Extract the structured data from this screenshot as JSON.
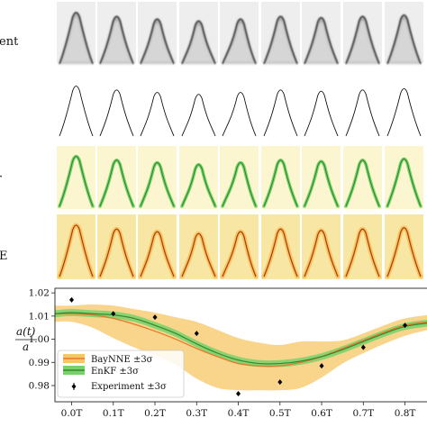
{
  "row_labels": {
    "experiment": "ent",
    "panel3": "·",
    "panel4": "E"
  },
  "colors": {
    "baynne": "#e8782a",
    "baynne_band": "#f7c766",
    "enkf": "#2e8a2e",
    "enkf_band": "#7ad16b",
    "panel_bg_enkf": "#fbf6cf",
    "panel_bg_baynne": "#f8e7a4",
    "experiment": "#000000"
  },
  "chart_data": {
    "type": "line",
    "xlabel": "",
    "ylabel_numerator": "a(t)",
    "ylabel_denominator": "a",
    "ylim": [
      0.973,
      1.022
    ],
    "yticks": [
      "0.98",
      "0.99",
      "1.00",
      "1.01",
      "1.02"
    ],
    "ytick_values": [
      0.98,
      0.99,
      1.0,
      1.01,
      1.02
    ],
    "xticks": [
      "0.0T",
      "0.1T",
      "0.2T",
      "0.3T",
      "0.4T",
      "0.5T",
      "0.6T",
      "0.7T",
      "0.8T"
    ],
    "xtick_values": [
      0,
      0.1,
      0.2,
      0.3,
      0.4,
      0.5,
      0.6,
      0.7,
      0.8
    ],
    "xlim": [
      -0.04,
      0.855
    ],
    "legend_position": "lower-left",
    "series": [
      {
        "name": "BayNNE ±3σ",
        "x": [
          -0.04,
          0.0,
          0.05,
          0.1,
          0.15,
          0.2,
          0.25,
          0.3,
          0.35,
          0.4,
          0.45,
          0.5,
          0.55,
          0.6,
          0.65,
          0.7,
          0.75,
          0.8,
          0.855
        ],
        "values": [
          1.011,
          1.011,
          1.0105,
          1.009,
          1.0065,
          1.0035,
          1.0,
          0.996,
          0.9925,
          0.9895,
          0.9885,
          0.9885,
          0.99,
          0.9925,
          0.996,
          0.9995,
          1.003,
          1.006,
          1.0075
        ],
        "lower": [
          1.0075,
          1.0075,
          1.005,
          1.0005,
          0.9965,
          0.993,
          0.989,
          0.983,
          0.979,
          0.978,
          0.978,
          0.978,
          0.979,
          0.9835,
          0.9895,
          0.994,
          0.998,
          1.0015,
          1.004
        ],
        "upper": [
          1.0145,
          1.0145,
          1.015,
          1.0145,
          1.013,
          1.0115,
          1.0095,
          1.0075,
          1.004,
          1.0005,
          0.9985,
          0.9975,
          0.999,
          0.999,
          0.9995,
          1.0025,
          1.006,
          1.009,
          1.0105
        ]
      },
      {
        "name": "EnKF ±3σ",
        "x": [
          -0.04,
          0.0,
          0.05,
          0.1,
          0.15,
          0.2,
          0.25,
          0.3,
          0.35,
          0.4,
          0.45,
          0.5,
          0.55,
          0.6,
          0.65,
          0.7,
          0.75,
          0.8,
          0.855
        ],
        "values": [
          1.011,
          1.0115,
          1.011,
          1.0105,
          1.009,
          1.006,
          1.0025,
          0.998,
          0.994,
          0.991,
          0.9895,
          0.9895,
          0.9905,
          0.9925,
          0.9955,
          0.999,
          1.0025,
          1.0055,
          1.007
        ],
        "lower": [
          1.0095,
          1.01,
          1.0095,
          1.009,
          1.0075,
          1.0045,
          1.001,
          0.9965,
          0.9925,
          0.9895,
          0.988,
          0.988,
          0.989,
          0.991,
          0.994,
          0.9975,
          1.001,
          1.004,
          1.0055
        ],
        "upper": [
          1.0125,
          1.013,
          1.0125,
          1.012,
          1.0105,
          1.0075,
          1.004,
          0.9995,
          0.9955,
          0.9925,
          0.991,
          0.991,
          0.992,
          0.994,
          0.997,
          1.0005,
          1.004,
          1.007,
          1.0085
        ]
      }
    ],
    "experiment": {
      "name": "Experiment ±3σ",
      "x": [
        0.0,
        0.1,
        0.2,
        0.3,
        0.4,
        0.5,
        0.6,
        0.7,
        0.8
      ],
      "values": [
        1.017,
        1.011,
        1.0095,
        1.0025,
        0.9765,
        0.9815,
        0.9885,
        0.9965,
        1.006
      ],
      "err": [
        0.0008,
        0.0006,
        0.0006,
        0.0006,
        0.0009,
        0.0006,
        0.0006,
        0.0006,
        0.0008
      ]
    }
  }
}
